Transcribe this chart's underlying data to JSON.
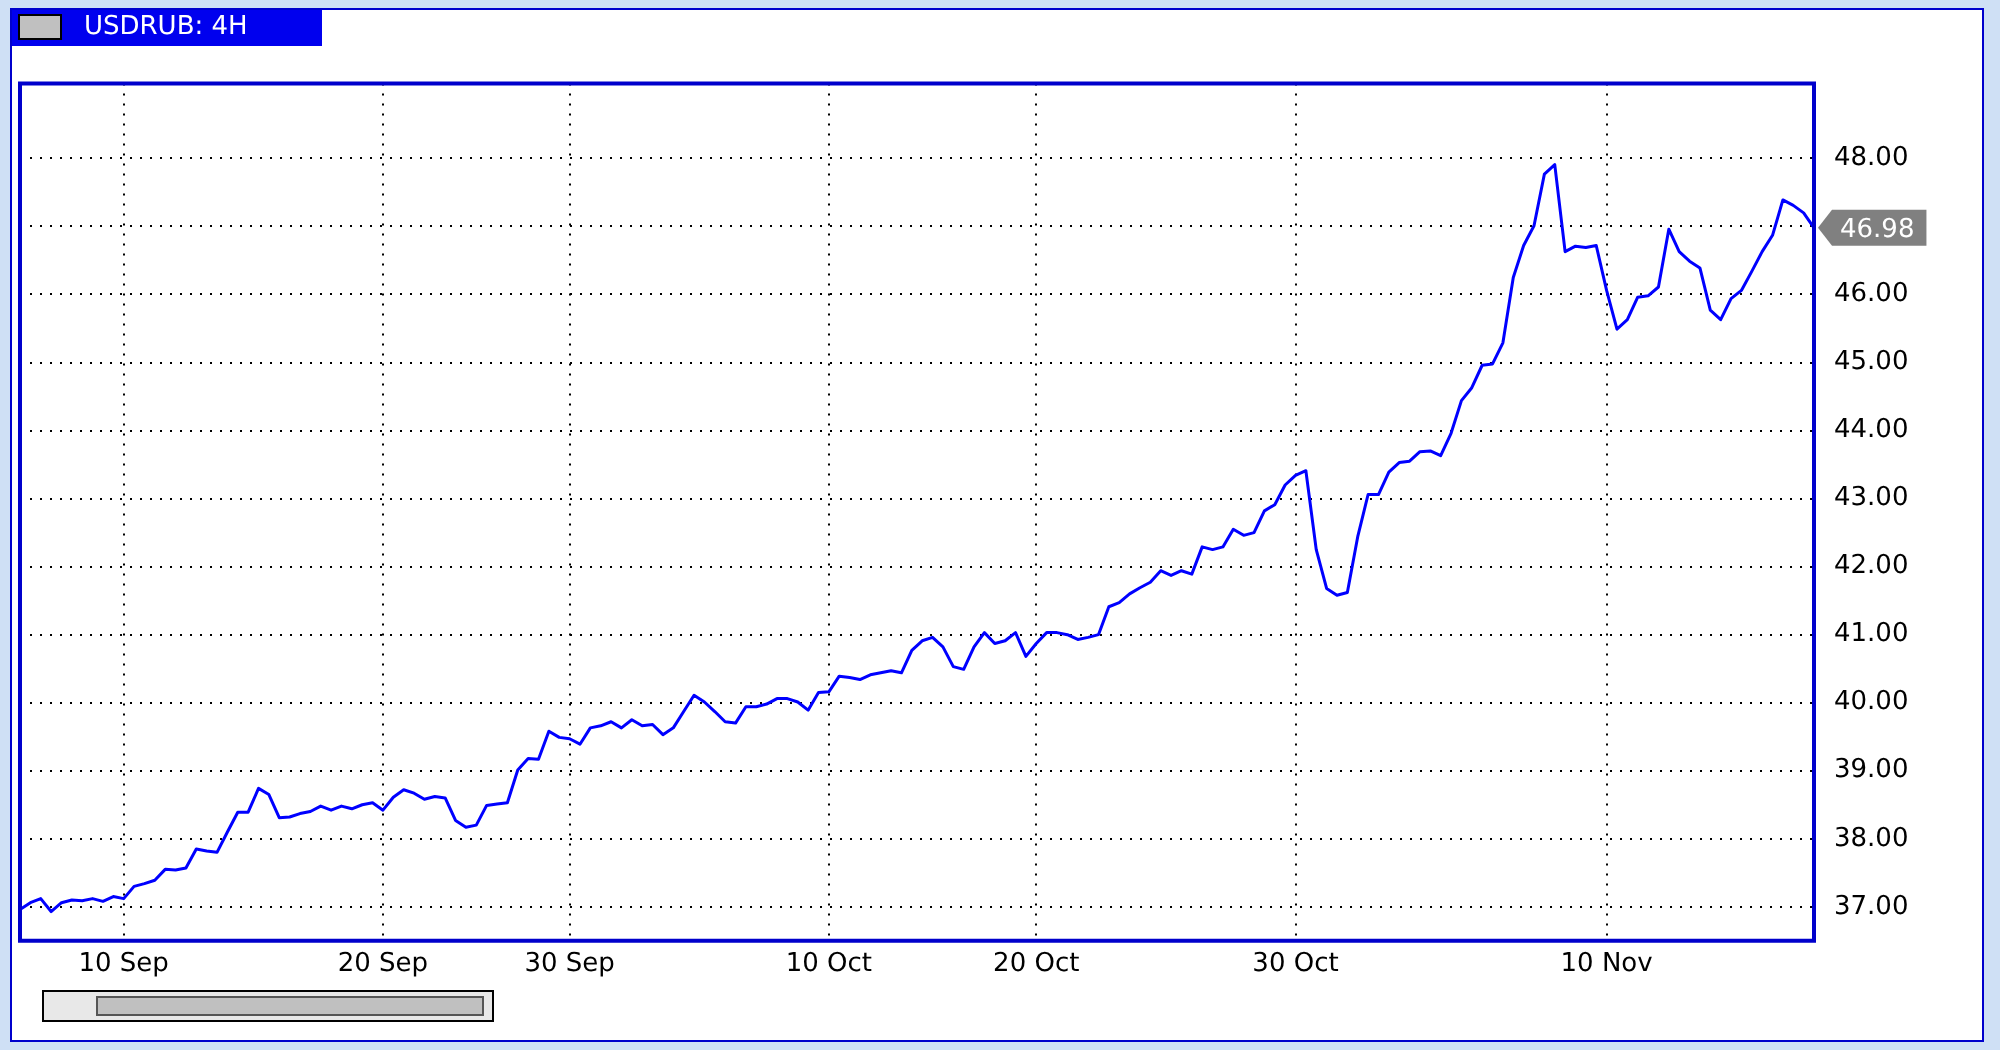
{
  "chart_data": {
    "type": "line",
    "title": "USDRUB: 4H",
    "categories": [
      null,
      null,
      null,
      null,
      null,
      null,
      null,
      null,
      null,
      null,
      "10 Sep",
      null,
      null,
      null,
      null,
      null,
      null,
      null,
      null,
      null,
      null,
      null,
      null,
      null,
      null,
      null,
      null,
      null,
      null,
      null,
      null,
      null,
      null,
      null,
      null,
      "20 Sep",
      null,
      null,
      null,
      null,
      null,
      null,
      null,
      null,
      null,
      null,
      null,
      null,
      null,
      null,
      null,
      null,
      null,
      "30 Sep",
      null,
      null,
      null,
      null,
      null,
      null,
      null,
      null,
      null,
      null,
      null,
      null,
      null,
      null,
      null,
      null,
      null,
      null,
      null,
      null,
      null,
      null,
      null,
      null,
      "10 Oct",
      null,
      null,
      null,
      null,
      null,
      null,
      null,
      null,
      null,
      null,
      null,
      null,
      null,
      null,
      null,
      null,
      null,
      null,
      null,
      "20 Oct",
      null,
      null,
      null,
      null,
      null,
      null,
      null,
      null,
      null,
      null,
      null,
      null,
      null,
      null,
      null,
      null,
      null,
      null,
      null,
      null,
      null,
      null,
      null,
      null,
      "30 Oct",
      null,
      null,
      null,
      null,
      null,
      null,
      null,
      null,
      null,
      null,
      null,
      null,
      null,
      null,
      null,
      null,
      null,
      null,
      null,
      null,
      null,
      null,
      null,
      null,
      null,
      null,
      null,
      null,
      null,
      "10 Nov",
      null,
      null,
      null,
      null,
      null,
      null,
      null,
      null,
      null,
      null,
      null,
      null,
      null,
      null,
      null,
      null,
      null,
      null,
      null,
      null
    ],
    "ylim": [
      36.5,
      49.1
    ],
    "yticks": [
      {
        "value": 37,
        "label": "37.00"
      },
      {
        "value": 38,
        "label": "38.00"
      },
      {
        "value": 39,
        "label": "39.00"
      },
      {
        "value": 40,
        "label": "40.00"
      },
      {
        "value": 41,
        "label": "41.00"
      },
      {
        "value": 42,
        "label": "42.00"
      },
      {
        "value": 43,
        "label": "43.00"
      },
      {
        "value": 44,
        "label": "44.00"
      },
      {
        "value": 45,
        "label": "45.00"
      },
      {
        "value": 46,
        "label": "46.00"
      },
      {
        "value": 47,
        "label": null
      },
      {
        "value": 48,
        "label": "48.00"
      }
    ],
    "grid": true,
    "legend": false,
    "marker": "none",
    "line_style": "solid",
    "annotations": [
      "46.98"
    ],
    "series": [
      {
        "color": "#0000ff",
        "values": [
          36.96,
          37.06,
          37.12,
          36.93,
          37.06,
          37.1,
          37.09,
          37.12,
          37.08,
          37.15,
          37.12,
          37.3,
          37.34,
          37.39,
          37.55,
          37.54,
          37.57,
          37.85,
          37.82,
          37.8,
          38.1,
          38.39,
          38.39,
          38.74,
          38.65,
          38.31,
          38.32,
          38.37,
          38.4,
          38.48,
          38.42,
          38.48,
          38.44,
          38.5,
          38.53,
          38.42,
          38.61,
          38.72,
          38.67,
          38.58,
          38.62,
          38.6,
          38.27,
          38.17,
          38.2,
          38.49,
          38.51,
          38.53,
          39.01,
          39.18,
          39.17,
          39.58,
          39.49,
          39.47,
          39.39,
          39.63,
          39.66,
          39.72,
          39.63,
          39.75,
          39.66,
          39.68,
          39.53,
          39.63,
          39.87,
          40.11,
          40.01,
          39.87,
          39.72,
          39.7,
          39.94,
          39.94,
          39.98,
          40.06,
          40.06,
          40.01,
          39.89,
          40.15,
          40.16,
          40.39,
          40.37,
          40.34,
          40.41,
          40.44,
          40.47,
          40.44,
          40.77,
          40.91,
          40.96,
          40.82,
          40.53,
          40.49,
          40.82,
          41.03,
          40.87,
          40.91,
          41.03,
          40.68,
          40.87,
          41.03,
          41.03,
          41.0,
          40.93,
          40.96,
          41.0,
          41.41,
          41.47,
          41.6,
          41.69,
          41.77,
          41.94,
          41.87,
          41.94,
          41.89,
          42.29,
          42.25,
          42.29,
          42.55,
          42.46,
          42.5,
          42.82,
          42.91,
          43.2,
          43.34,
          43.41,
          42.25,
          41.68,
          41.58,
          41.62,
          42.44,
          43.06,
          43.06,
          43.39,
          43.53,
          43.55,
          43.69,
          43.7,
          43.63,
          43.96,
          44.44,
          44.63,
          44.96,
          44.98,
          45.29,
          46.25,
          46.72,
          47.01,
          47.77,
          47.91,
          46.63,
          46.71,
          46.69,
          46.72,
          46.06,
          45.49,
          45.63,
          45.96,
          45.98,
          46.11,
          46.96,
          46.63,
          46.49,
          46.39,
          45.77,
          45.63,
          45.94,
          46.06,
          46.34,
          46.63,
          46.87,
          47.39,
          47.31,
          47.2,
          46.98
        ]
      }
    ]
  }
}
